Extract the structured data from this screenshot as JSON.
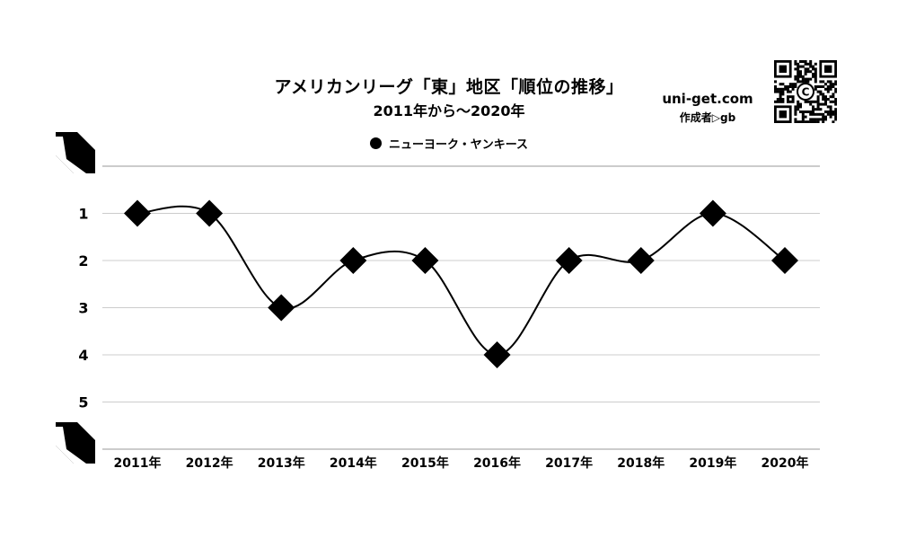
{
  "page": {
    "title": "アメリカンリーグ「東」地区「順位の推移」",
    "subtitle": "2011年から～2020年",
    "site": "uni-get.com",
    "author": "作成者▷gb"
  },
  "qr_code": {
    "center_glyph": "C"
  },
  "colors": {
    "line": "#000000",
    "marker": "#000000",
    "grid": "#cccccc",
    "background": "#ffffff"
  },
  "chart_data": {
    "type": "line",
    "title": "アメリカンリーグ「東」地区「順位の推移」",
    "subtitle": "2011年から～2020年",
    "categories": [
      "2011年",
      "2012年",
      "2013年",
      "2014年",
      "2015年",
      "2016年",
      "2017年",
      "2018年",
      "2019年",
      "2020年"
    ],
    "series": [
      {
        "name": "ニューヨーク・ヤンキース",
        "values": [
          1,
          1,
          3,
          2,
          2,
          4,
          2,
          2,
          1,
          2
        ],
        "marker": "diamond",
        "color": "#000000"
      }
    ],
    "yticks": [
      "1",
      "2",
      "3",
      "4",
      "5"
    ],
    "ylim": [
      0,
      6
    ],
    "y_inverted": true,
    "grid": true,
    "legend_position": "top",
    "xlabel": "",
    "ylabel": ""
  }
}
